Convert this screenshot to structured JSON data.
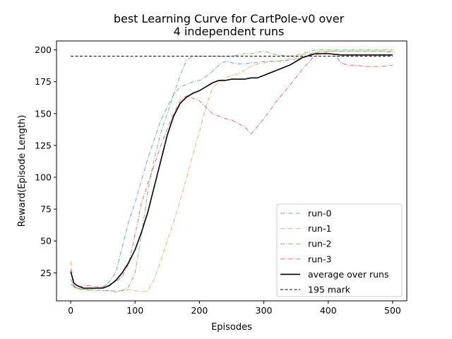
{
  "chart_data": {
    "type": "line",
    "title_lines": [
      "best Learning Curve for CartPole-v0 over",
      "4 independent runs"
    ],
    "xlabel": "Episodes",
    "ylabel": "Reward(Episode Length)",
    "xlim": [
      -22,
      522
    ],
    "ylim": [
      3,
      207
    ],
    "xticks": [
      0,
      100,
      200,
      300,
      400,
      500
    ],
    "yticks": [
      25,
      50,
      75,
      100,
      125,
      150,
      175,
      200
    ],
    "grid": false,
    "legend_position": "lower-right",
    "series": [
      {
        "name": "run-0",
        "color": "#1f77b4",
        "style": "dashdot",
        "x": [
          0,
          5,
          10,
          20,
          30,
          40,
          50,
          60,
          70,
          80,
          90,
          100,
          110,
          120,
          130,
          140,
          150,
          160,
          170,
          180,
          190,
          200,
          210,
          220,
          230,
          240,
          250,
          260,
          270,
          280,
          290,
          300,
          320,
          340,
          360,
          380,
          400,
          420,
          440,
          460,
          480,
          500
        ],
        "y": [
          16,
          15,
          13,
          12,
          12,
          13,
          14,
          18,
          25,
          45,
          65,
          80,
          98,
          115,
          130,
          145,
          155,
          165,
          171,
          173,
          175,
          176,
          179,
          183,
          188,
          191,
          190,
          189,
          189,
          190,
          190,
          191,
          191,
          192,
          194,
          198,
          199,
          199,
          199,
          199,
          199,
          198
        ]
      },
      {
        "name": "run-1",
        "color": "#ff7f0e",
        "style": "dashdot",
        "x": [
          0,
          5,
          10,
          20,
          30,
          40,
          50,
          60,
          70,
          80,
          90,
          100,
          110,
          120,
          130,
          140,
          150,
          160,
          170,
          180,
          190,
          200,
          210,
          220,
          230,
          240,
          250,
          260,
          270,
          280,
          290,
          300,
          320,
          340,
          360,
          380,
          400,
          420,
          440,
          460,
          480,
          500
        ],
        "y": [
          34,
          14,
          12,
          12,
          11,
          11,
          11,
          11,
          11,
          11,
          12,
          11,
          10,
          11,
          20,
          35,
          50,
          65,
          82,
          100,
          118,
          136,
          155,
          170,
          175,
          178,
          180,
          181,
          184,
          187,
          189,
          190,
          191,
          193,
          196,
          198,
          199,
          199,
          199,
          199,
          199,
          199
        ]
      },
      {
        "name": "run-2",
        "color": "#2ca02c",
        "style": "dashdot",
        "x": [
          0,
          5,
          10,
          20,
          30,
          40,
          50,
          60,
          70,
          80,
          90,
          100,
          110,
          120,
          130,
          140,
          150,
          160,
          170,
          180,
          190,
          200,
          210,
          220,
          230,
          240,
          250,
          260,
          270,
          280,
          290,
          300,
          320,
          340,
          360,
          380,
          400,
          420,
          440,
          460,
          480,
          500
        ],
        "y": [
          20,
          15,
          13,
          12,
          12,
          12,
          11,
          11,
          10,
          11,
          14,
          25,
          55,
          90,
          115,
          135,
          150,
          165,
          180,
          192,
          195,
          195,
          195,
          195,
          195,
          195,
          195,
          196,
          197,
          197,
          198,
          199,
          196,
          195,
          197,
          200,
          200,
          200,
          200,
          200,
          200,
          200
        ]
      },
      {
        "name": "run-3",
        "color": "#d62728",
        "style": "dashdot",
        "x": [
          0,
          5,
          10,
          20,
          30,
          40,
          50,
          60,
          70,
          80,
          90,
          100,
          110,
          120,
          130,
          140,
          150,
          160,
          170,
          180,
          190,
          200,
          210,
          220,
          230,
          240,
          250,
          260,
          270,
          280,
          290,
          300,
          320,
          340,
          360,
          380,
          400,
          410,
          420,
          430,
          440,
          460,
          480,
          500
        ],
        "y": [
          28,
          14,
          13,
          15,
          15,
          14,
          14,
          16,
          18,
          22,
          32,
          55,
          80,
          95,
          110,
          125,
          138,
          150,
          160,
          164,
          162,
          160,
          155,
          150,
          148,
          146,
          145,
          142,
          140,
          134,
          140,
          146,
          160,
          172,
          185,
          196,
          198,
          196,
          190,
          188,
          188,
          187,
          187,
          188
        ]
      },
      {
        "name": "average over runs",
        "color": "#000000",
        "style": "solid",
        "x": [
          0,
          5,
          10,
          20,
          30,
          40,
          50,
          60,
          70,
          80,
          90,
          100,
          110,
          120,
          130,
          140,
          150,
          160,
          170,
          180,
          190,
          200,
          210,
          220,
          230,
          240,
          250,
          260,
          270,
          280,
          290,
          300,
          320,
          340,
          360,
          380,
          400,
          420,
          440,
          460,
          480,
          500
        ],
        "y": [
          26,
          17,
          15,
          13,
          13,
          13,
          13,
          15,
          19,
          25,
          33,
          43,
          57,
          73,
          93,
          113,
          133,
          148,
          158,
          163,
          166,
          168,
          171,
          174,
          176,
          176,
          177,
          177,
          177,
          178,
          178,
          180,
          184,
          188,
          194,
          197,
          197,
          196,
          196,
          196,
          196,
          196
        ]
      },
      {
        "name": "195 mark",
        "color": "#000000",
        "style": "dashed",
        "x": [
          0,
          500
        ],
        "y": [
          195,
          195
        ]
      }
    ]
  }
}
